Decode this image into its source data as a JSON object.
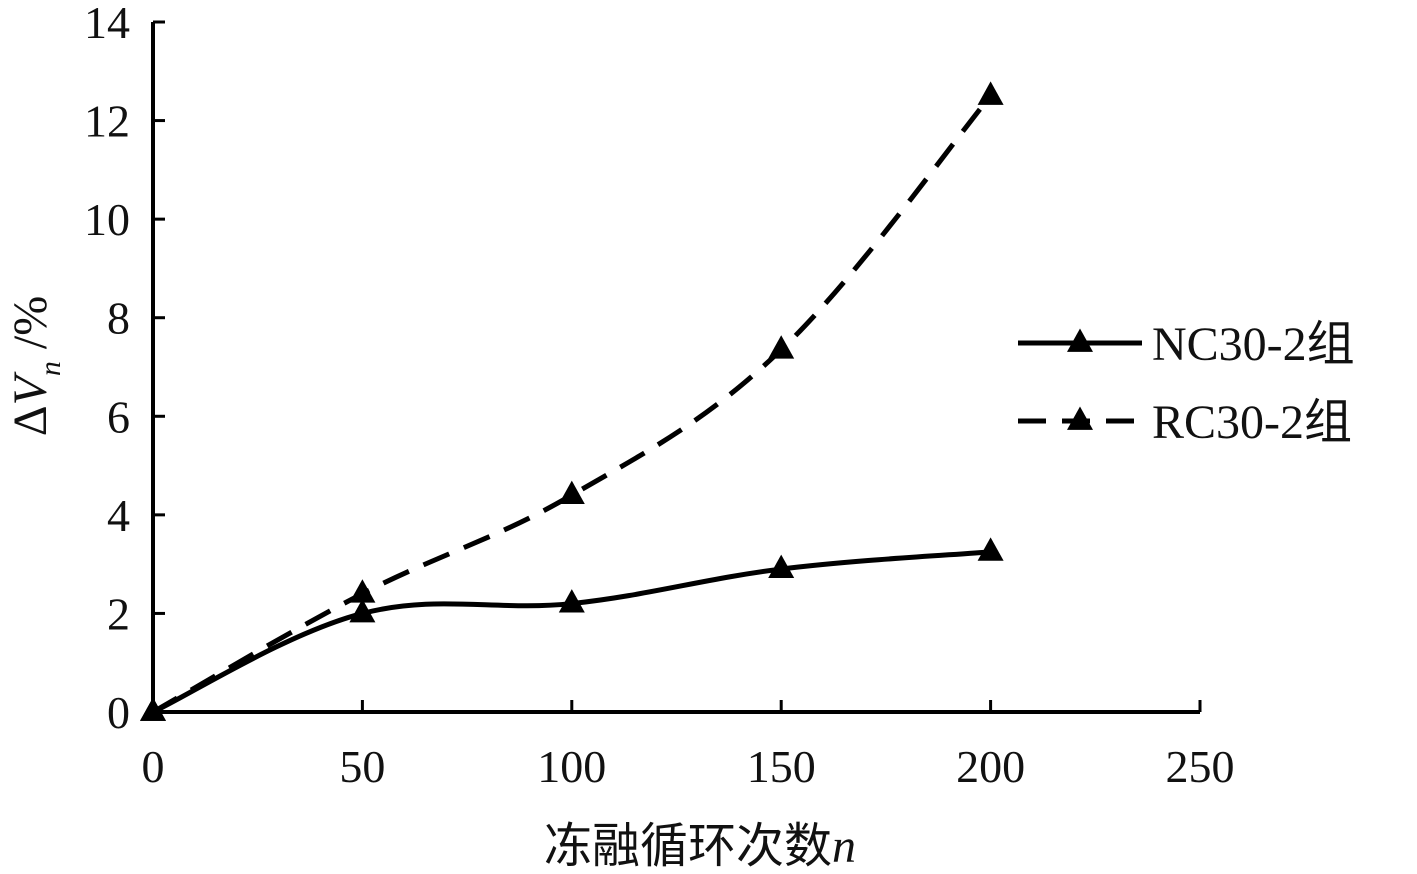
{
  "chart_data": {
    "type": "line",
    "xlabel": "冻融循环次数n",
    "ylabel": "ΔVn/%",
    "xlim": [
      0,
      250
    ],
    "ylim": [
      0,
      14
    ],
    "xticks": [
      "0",
      "50",
      "100",
      "150",
      "200",
      "250"
    ],
    "yticks": [
      "0",
      "2",
      "4",
      "6",
      "8",
      "10",
      "12",
      "14"
    ],
    "grid": false,
    "legend": "right",
    "series": [
      {
        "name": "NC30-2组",
        "style": "solid",
        "marker": "triangle",
        "color": "#000000",
        "x": [
          0,
          50,
          100,
          150,
          200
        ],
        "y": [
          0,
          2.0,
          2.2,
          2.9,
          3.25
        ]
      },
      {
        "name": "RC30-2组",
        "style": "dashed",
        "marker": "triangle",
        "color": "#000000",
        "x": [
          0,
          50,
          100,
          150,
          200
        ],
        "y": [
          0,
          2.4,
          4.4,
          7.35,
          12.5
        ]
      }
    ]
  }
}
